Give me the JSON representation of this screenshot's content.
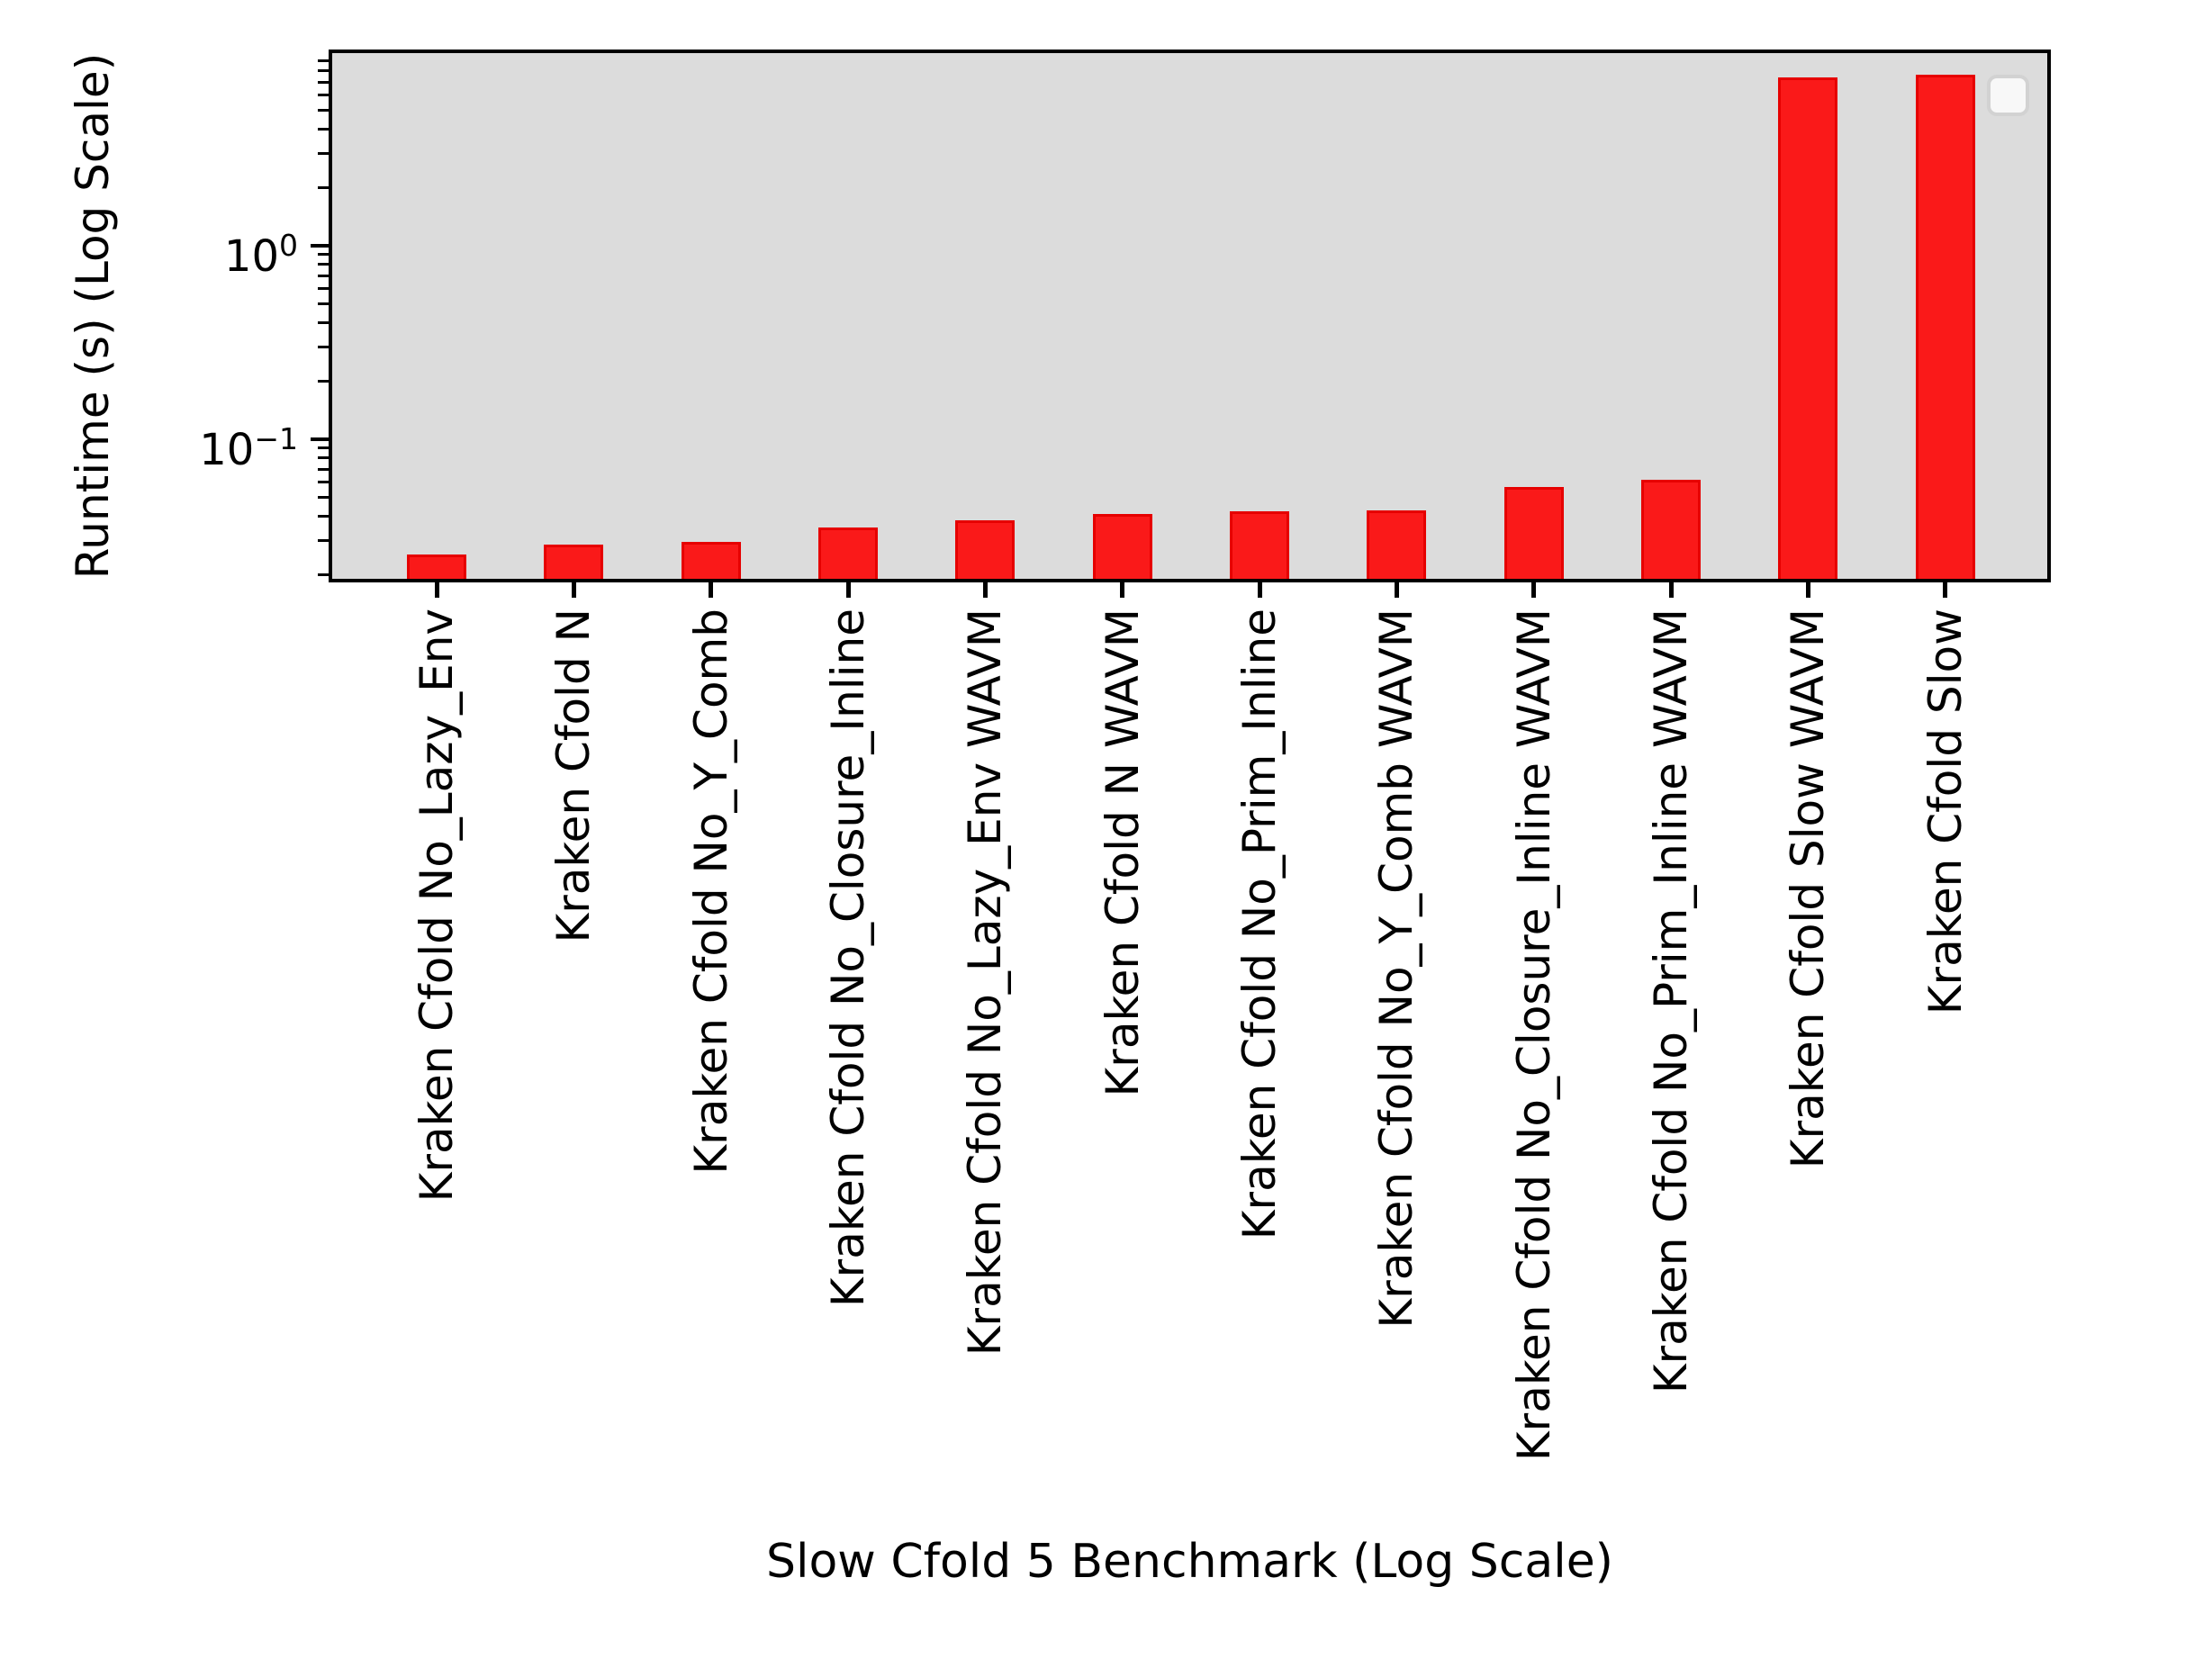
{
  "chart_data": {
    "type": "bar",
    "title": "",
    "xlabel": "Slow Cfold 5 Benchmark (Log Scale)",
    "ylabel": "Runtime (s) (Log Scale)",
    "yscale": "log",
    "ylim": [
      0.019,
      9.89
    ],
    "grid": false,
    "legend_position": "upper right",
    "legend_entries": [],
    "plot_bg_color": "#dcdcdc",
    "bar_color": "#fa1919",
    "bar_edge_color": "#e60000",
    "categories": [
      "Kraken Cfold No_Lazy_Env",
      "Kraken Cfold N",
      "Kraken Cfold No_Y_Comb",
      "Kraken Cfold No_Closure_Inline",
      "Kraken Cfold No_Lazy_Env WAVM",
      "Kraken Cfold N WAVM",
      "Kraken Cfold No_Prim_Inline",
      "Kraken Cfold No_Y_Comb WAVM",
      "Kraken Cfold No_Closure_Inline WAVM",
      "Kraken Cfold No_Prim_Inline WAVM",
      "Kraken Cfold Slow WAVM",
      "Kraken Cfold Slow"
    ],
    "values": [
      0.0254,
      0.0286,
      0.0295,
      0.035,
      0.0381,
      0.0411,
      0.0424,
      0.0427,
      0.0567,
      0.0618,
      7.41,
      7.65
    ],
    "y_major_ticks": [
      {
        "value": 1,
        "base": "10",
        "exp": "0"
      },
      {
        "value": 0.1,
        "base": "10",
        "exp": "−1"
      }
    ],
    "y_minor_ticks": [
      0.02,
      0.03,
      0.04,
      0.05,
      0.06,
      0.07,
      0.08,
      0.09,
      0.2,
      0.3,
      0.4,
      0.5,
      0.6,
      0.7,
      0.8,
      0.9,
      2,
      3,
      4,
      5,
      6,
      7,
      8,
      9
    ]
  }
}
